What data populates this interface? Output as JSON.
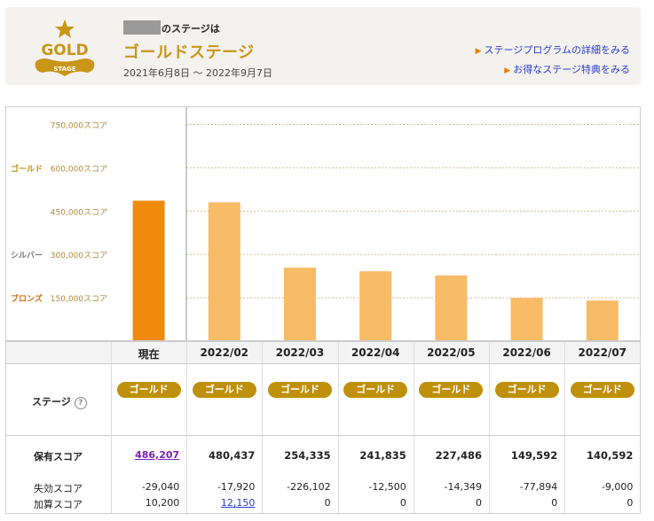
{
  "header": {
    "greeting_suffix": "のステージは",
    "stage_name": "ゴールドステージ",
    "period": "2021年6月8日 〜 2022年9月7日",
    "logo_text": "GOLD",
    "logo_subtext": "STAGE",
    "links": [
      "ステージプログラムの詳細をみる",
      "お得なステージ特典をみる"
    ]
  },
  "colors": {
    "current_bar": "#f08a0c",
    "past_bar": "#f8bb66",
    "badge": "#bf900c",
    "gold_text": "#c9961a"
  },
  "chart_data": {
    "type": "bar",
    "categories": [
      "現在",
      "2022/02",
      "2022/03",
      "2022/04",
      "2022/05",
      "2022/06",
      "2022/07"
    ],
    "values": [
      486207,
      480437,
      254335,
      241835,
      227486,
      149592,
      140592
    ],
    "ylim": [
      0,
      800000
    ],
    "y_ticks": [
      {
        "value": 750000,
        "label": "750,000スコア",
        "rank": ""
      },
      {
        "value": 600000,
        "label": "600,000スコア",
        "rank": "ゴールド"
      },
      {
        "value": 450000,
        "label": "450,000スコア",
        "rank": ""
      },
      {
        "value": 300000,
        "label": "300,000スコア",
        "rank": "シルバー"
      },
      {
        "value": 150000,
        "label": "150,000スコア",
        "rank": "ブロンズ"
      }
    ],
    "grid": true
  },
  "table": {
    "stage_label": "ステージ",
    "stages": [
      "ゴールド",
      "ゴールド",
      "ゴールド",
      "ゴールド",
      "ゴールド",
      "ゴールド",
      "ゴールド"
    ],
    "score_label": "保有スコア",
    "scores": [
      "486,207",
      "480,437",
      "254,335",
      "241,835",
      "227,486",
      "149,592",
      "140,592"
    ],
    "lost_label": "失効スコア",
    "lost": [
      "-29,040",
      "-17,920",
      "-226,102",
      "-12,500",
      "-14,349",
      "-77,894",
      "-9,000"
    ],
    "added_label": "加算スコア",
    "added": [
      "10,200",
      "12,150",
      "0",
      "0",
      "0",
      "0",
      "0"
    ]
  }
}
